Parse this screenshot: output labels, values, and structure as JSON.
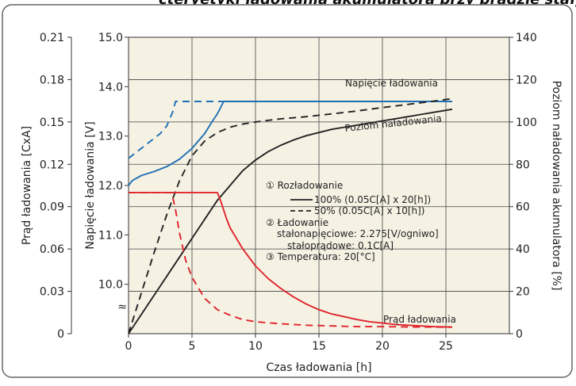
{
  "header": {
    "title_fragment": "cteryetyki ładowania akumulatora przy prądzie stałym"
  },
  "chart_data": {
    "type": "line",
    "title": "",
    "xlabel": "Czas ładowania [h]",
    "ylabel_current": "Prąd ładowania [CxA]",
    "ylabel_voltage": "Napięcie ładowania [V]",
    "ylabel_capacity": "Poziom naładowania akumulatora [%]",
    "x_ticks": [
      "0",
      "5",
      "10",
      "15",
      "20",
      "25"
    ],
    "current_ticks": [
      "0",
      "0.03",
      "0.06",
      "0.09",
      "0.12",
      "0.15",
      "0.18",
      "0.21"
    ],
    "voltage_ticks": [
      "10.0",
      "11.0",
      "12.0",
      "13.0",
      "14.0",
      "15.0"
    ],
    "voltage_break": "≈",
    "capacity_ticks": [
      "0",
      "20",
      "40",
      "60",
      "80",
      "100",
      "120",
      "140"
    ],
    "xlim": [
      0,
      30
    ],
    "ylim_current": [
      0,
      0.21
    ],
    "ylim_voltage": [
      9.0,
      15.0
    ],
    "ylim_capacity": [
      0,
      140
    ],
    "grid": true,
    "colors": {
      "voltage": "#1f6fb5",
      "capacity": "#222222",
      "current": "#e0242b",
      "plot_bg": "#f5f2e4"
    },
    "curve_labels": {
      "voltage": "Napięcie ładowania",
      "capacity": "Poziom naładowania",
      "current": "Prąd ładowania"
    },
    "legend": {
      "discharge_title": "① Rozładowanie",
      "discharge_100": "100% (0.05C[A] x 20[h])",
      "discharge_50": "50% (0.05C[A] x 10[h])",
      "charge_title": "② Ładowanie",
      "charge_cv": "stałonapięciowe: 2.275[V/ogniwo]",
      "charge_cc": "stałoprądowe: 0.1C[A]",
      "temperature": "③ Temperatura: 20[°C]"
    },
    "series": [
      {
        "name": "100% (0.05C[A] x 20[h])",
        "quantity": "voltage",
        "style": "solid",
        "x": [
          0,
          0.3,
          1,
          2,
          3,
          4,
          5,
          6,
          6.6,
          7,
          7.5,
          10,
          15,
          20,
          25.5
        ],
        "y": [
          12.0,
          12.1,
          12.2,
          12.28,
          12.38,
          12.53,
          12.75,
          13.05,
          13.3,
          13.45,
          13.7,
          13.7,
          13.7,
          13.7,
          13.7
        ]
      },
      {
        "name": "50% (0.05C[A] x 10[h])",
        "quantity": "voltage",
        "style": "dashed",
        "x": [
          0,
          0.5,
          1,
          1.5,
          2,
          2.5,
          3,
          3.5,
          3.7,
          25.5
        ],
        "y": [
          12.55,
          12.65,
          12.75,
          12.85,
          12.95,
          13.05,
          13.2,
          13.5,
          13.7,
          13.7
        ]
      },
      {
        "name": "100% (0.05C[A] x 20[h])",
        "quantity": "capacity",
        "style": "solid",
        "x": [
          0,
          2,
          4,
          6,
          7,
          8,
          9,
          10,
          11,
          12,
          13,
          14,
          15,
          16,
          17,
          18,
          19,
          20,
          21,
          22,
          23,
          24,
          25,
          25.5
        ],
        "y": [
          0,
          18,
          36,
          54,
          63,
          70,
          77,
          82,
          86,
          89,
          91.5,
          93.5,
          95,
          96.5,
          97.5,
          98.5,
          99.5,
          100.5,
          101.5,
          102.5,
          103.5,
          104.5,
          105.5,
          106
        ]
      },
      {
        "name": "50% (0.05C[A] x 10[h])",
        "quantity": "capacity",
        "style": "dashed",
        "x": [
          0,
          1,
          2,
          3,
          3.5,
          4,
          5,
          6,
          7,
          8,
          9,
          10,
          12,
          14,
          16,
          18,
          20,
          22,
          24,
          25.5
        ],
        "y": [
          0,
          19,
          38,
          56,
          64,
          72,
          84,
          91,
          95,
          97.5,
          99,
          100,
          101.5,
          102.5,
          103.8,
          105.2,
          106.8,
          108.3,
          109.8,
          111
        ]
      },
      {
        "name": "100% (0.05C[A] x 20[h])",
        "quantity": "current",
        "style": "solid",
        "x": [
          0,
          7,
          7.3,
          7.7,
          8,
          9,
          10,
          11,
          12,
          13,
          14,
          15,
          16,
          17,
          18,
          19,
          20,
          21,
          22,
          23,
          24,
          25,
          25.5
        ],
        "y": [
          0.1,
          0.1,
          0.093,
          0.082,
          0.075,
          0.06,
          0.048,
          0.039,
          0.032,
          0.026,
          0.021,
          0.017,
          0.014,
          0.012,
          0.01,
          0.0085,
          0.0075,
          0.0065,
          0.006,
          0.0055,
          0.005,
          0.0048,
          0.0047
        ]
      },
      {
        "name": "50% (0.05C[A] x 10[h])",
        "quantity": "current",
        "style": "dashed",
        "x": [
          0,
          3.3,
          3.5,
          3.7,
          4,
          4.5,
          5,
          6,
          7,
          8,
          9,
          10,
          12,
          14,
          16,
          18,
          20,
          22,
          24,
          25.5
        ],
        "y": [
          0.1,
          0.1,
          0.096,
          0.088,
          0.072,
          0.052,
          0.04,
          0.025,
          0.017,
          0.013,
          0.01,
          0.0085,
          0.007,
          0.006,
          0.0055,
          0.005,
          0.005,
          0.0048,
          0.0047,
          0.0046
        ]
      }
    ]
  }
}
